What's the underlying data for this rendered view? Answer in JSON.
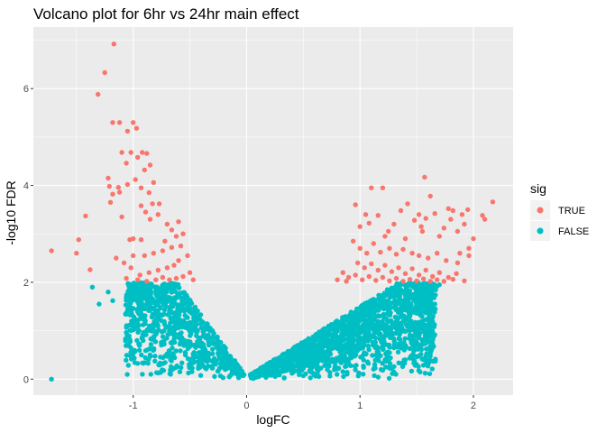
{
  "chart_data": {
    "type": "scatter",
    "title": "Volcano plot for 6hr vs 24hr main effect",
    "xlabel": "logFC",
    "ylabel": "-log10 FDR",
    "xlim": [
      -1.88,
      2.35
    ],
    "ylim": [
      -0.33,
      7.27
    ],
    "x_ticks": [
      -1,
      0,
      1,
      2
    ],
    "x_tick_labels": [
      "-1",
      "0",
      "1",
      "2"
    ],
    "y_ticks": [
      0,
      2,
      4,
      6
    ],
    "y_tick_labels": [
      "0",
      "2",
      "4",
      "6"
    ],
    "grid": true,
    "legend": {
      "title": "sig",
      "position": "right",
      "entries": [
        {
          "label": "TRUE",
          "color": "#F8766D"
        },
        {
          "label": "FALSE",
          "color": "#00BFC4"
        }
      ]
    },
    "series": [
      {
        "name": "TRUE",
        "color": "#F8766D",
        "points": [
          [
            -1.17,
            6.92
          ],
          [
            -1.25,
            6.33
          ],
          [
            -1.31,
            5.88
          ],
          [
            -1.05,
            5.12
          ],
          [
            -1.18,
            5.3
          ],
          [
            -1.12,
            5.3
          ],
          [
            -1.0,
            5.3
          ],
          [
            -0.97,
            5.18
          ],
          [
            -1.1,
            4.68
          ],
          [
            -1.02,
            4.68
          ],
          [
            -0.92,
            4.68
          ],
          [
            -0.88,
            4.66
          ],
          [
            -0.96,
            4.58
          ],
          [
            -1.06,
            4.46
          ],
          [
            -0.85,
            4.42
          ],
          [
            -0.9,
            4.32
          ],
          [
            -1.22,
            4.15
          ],
          [
            -0.98,
            4.12
          ],
          [
            -0.82,
            4.06
          ],
          [
            -1.21,
            3.98
          ],
          [
            -1.13,
            3.96
          ],
          [
            -1.05,
            4.02
          ],
          [
            -0.93,
            3.95
          ],
          [
            -1.18,
            3.82
          ],
          [
            -1.12,
            3.86
          ],
          [
            -0.86,
            3.85
          ],
          [
            -0.83,
            3.62
          ],
          [
            -0.77,
            3.62
          ],
          [
            -1.2,
            3.65
          ],
          [
            -0.93,
            3.58
          ],
          [
            -0.89,
            3.45
          ],
          [
            -0.78,
            3.4
          ],
          [
            -0.85,
            3.3
          ],
          [
            -1.1,
            3.35
          ],
          [
            -1.42,
            3.37
          ],
          [
            -0.6,
            3.25
          ],
          [
            -0.7,
            3.2
          ],
          [
            -0.66,
            3.08
          ],
          [
            -0.56,
            3.0
          ],
          [
            -0.62,
            2.95
          ],
          [
            -0.72,
            2.85
          ],
          [
            -0.93,
            2.88
          ],
          [
            -1.0,
            2.9
          ],
          [
            -1.03,
            2.88
          ],
          [
            -1.48,
            2.88
          ],
          [
            -0.58,
            2.75
          ],
          [
            -0.66,
            2.72
          ],
          [
            -0.74,
            2.65
          ],
          [
            -0.82,
            2.6
          ],
          [
            -0.9,
            2.55
          ],
          [
            -1.0,
            2.55
          ],
          [
            -1.15,
            2.5
          ],
          [
            -1.72,
            2.65
          ],
          [
            -0.52,
            2.55
          ],
          [
            -0.6,
            2.45
          ],
          [
            -0.64,
            2.35
          ],
          [
            -0.7,
            2.3
          ],
          [
            -0.78,
            2.25
          ],
          [
            -0.86,
            2.2
          ],
          [
            -0.94,
            2.15
          ],
          [
            -1.02,
            2.3
          ],
          [
            -1.08,
            2.4
          ],
          [
            -0.5,
            2.2
          ],
          [
            -0.56,
            2.12
          ],
          [
            -0.62,
            2.08
          ],
          [
            -0.68,
            2.05
          ],
          [
            -0.74,
            2.1
          ],
          [
            -0.8,
            2.05
          ],
          [
            -0.88,
            2.02
          ],
          [
            -0.96,
            2.05
          ],
          [
            -1.06,
            2.08
          ],
          [
            -1.38,
            2.26
          ],
          [
            -1.5,
            2.6
          ],
          [
            -0.47,
            2.05
          ],
          [
            2.17,
            3.66
          ],
          [
            2.1,
            3.3
          ],
          [
            2.08,
            3.38
          ],
          [
            1.9,
            3.4
          ],
          [
            1.95,
            3.5
          ],
          [
            1.82,
            3.48
          ],
          [
            1.78,
            3.52
          ],
          [
            1.55,
            3.05
          ],
          [
            1.58,
            3.32
          ],
          [
            1.52,
            3.4
          ],
          [
            1.48,
            3.28
          ],
          [
            1.3,
            3.2
          ],
          [
            1.25,
            3.05
          ],
          [
            1.1,
            3.95
          ],
          [
            1.2,
            3.95
          ],
          [
            1.57,
            4.17
          ],
          [
            1.62,
            3.78
          ],
          [
            1.42,
            3.62
          ],
          [
            1.36,
            3.48
          ],
          [
            1.05,
            3.4
          ],
          [
            1.0,
            3.15
          ],
          [
            1.08,
            3.22
          ],
          [
            1.16,
            3.38
          ],
          [
            1.22,
            2.95
          ],
          [
            1.4,
            2.9
          ],
          [
            1.7,
            2.95
          ],
          [
            1.86,
            3.05
          ],
          [
            1.96,
            2.7
          ],
          [
            1.92,
            3.2
          ],
          [
            1.74,
            3.12
          ],
          [
            1.66,
            3.42
          ],
          [
            1.8,
            3.3
          ],
          [
            0.94,
            2.85
          ],
          [
            1.0,
            2.7
          ],
          [
            1.06,
            2.6
          ],
          [
            1.12,
            2.8
          ],
          [
            1.18,
            2.62
          ],
          [
            1.26,
            2.7
          ],
          [
            1.32,
            2.58
          ],
          [
            1.38,
            2.68
          ],
          [
            1.46,
            2.6
          ],
          [
            1.52,
            2.55
          ],
          [
            1.6,
            2.5
          ],
          [
            1.68,
            2.6
          ],
          [
            1.76,
            2.45
          ],
          [
            1.86,
            2.4
          ],
          [
            1.96,
            2.55
          ],
          [
            0.98,
            2.4
          ],
          [
            1.04,
            2.3
          ],
          [
            1.1,
            2.38
          ],
          [
            1.16,
            2.25
          ],
          [
            1.22,
            2.35
          ],
          [
            1.28,
            2.22
          ],
          [
            1.34,
            2.3
          ],
          [
            1.4,
            2.18
          ],
          [
            1.46,
            2.28
          ],
          [
            1.52,
            2.15
          ],
          [
            1.58,
            2.25
          ],
          [
            1.64,
            2.12
          ],
          [
            1.7,
            2.2
          ],
          [
            1.78,
            2.1
          ],
          [
            0.85,
            2.2
          ],
          [
            0.9,
            2.1
          ],
          [
            0.96,
            2.15
          ],
          [
            1.02,
            2.05
          ],
          [
            1.08,
            2.12
          ],
          [
            1.14,
            2.04
          ],
          [
            1.2,
            2.1
          ],
          [
            1.26,
            2.03
          ],
          [
            1.32,
            2.08
          ],
          [
            1.38,
            2.02
          ],
          [
            1.44,
            2.06
          ],
          [
            1.5,
            2.03
          ],
          [
            1.56,
            2.07
          ],
          [
            1.62,
            2.02
          ],
          [
            1.68,
            2.05
          ],
          [
            1.74,
            2.02
          ],
          [
            1.82,
            2.06
          ],
          [
            1.92,
            2.03
          ],
          [
            0.8,
            2.05
          ],
          [
            0.88,
            2.02
          ],
          [
            1.85,
            2.18
          ],
          [
            1.88,
            2.6
          ],
          [
            2.0,
            2.9
          ],
          [
            1.54,
            3.15
          ],
          [
            0.96,
            3.6
          ]
        ]
      },
      {
        "name": "FALSE",
        "color": "#00BFC4",
        "points": []
      }
    ]
  }
}
